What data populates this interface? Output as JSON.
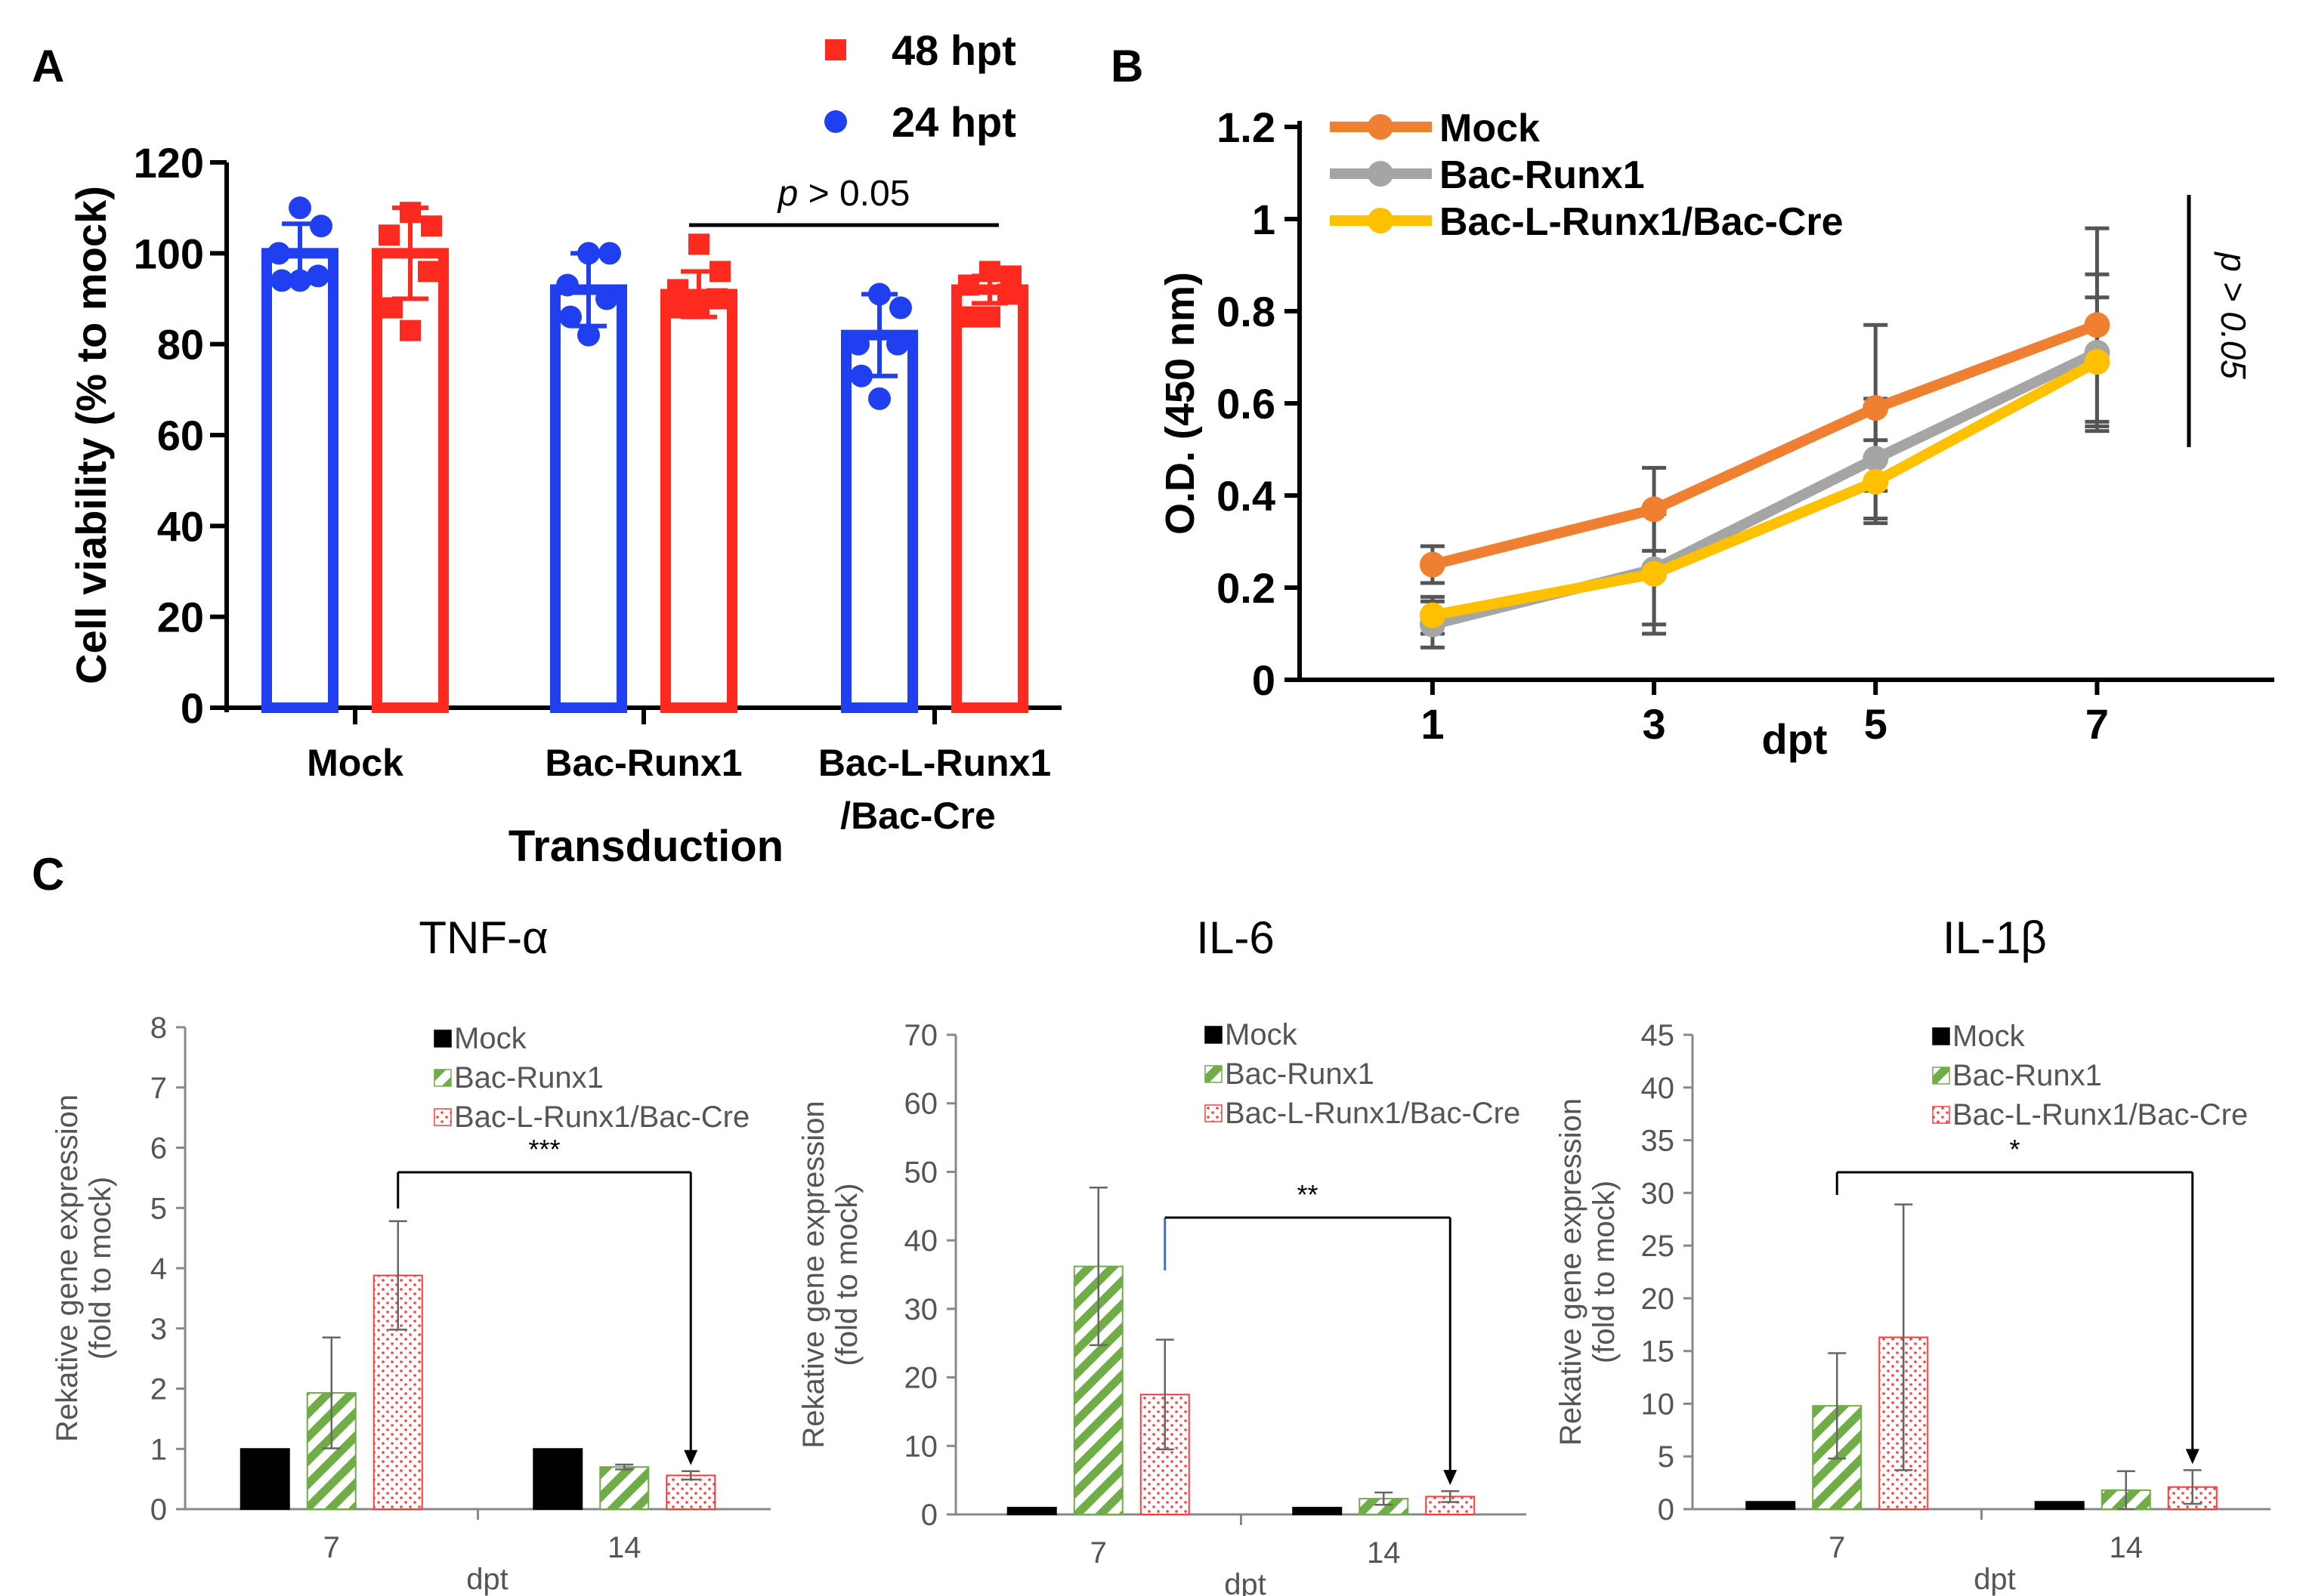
{
  "panels": {
    "A": {
      "label": "A"
    },
    "B": {
      "label": "B"
    },
    "C": {
      "label": "C"
    }
  },
  "chart_data": [
    {
      "id": "A",
      "type": "bar",
      "title": "",
      "xlabel": "Transduction",
      "ylabel": "Cell viability (% to mock)",
      "ylim": [
        0,
        120
      ],
      "yticks": [
        "0",
        "20",
        "40",
        "60",
        "80",
        "100",
        "120"
      ],
      "categories": [
        "Mock",
        "Bac-Runx1",
        "Bac-L-Runx1\n/Bac-Cre"
      ],
      "category_lines": [
        [
          "Mock"
        ],
        [
          "Bac-Runx1"
        ],
        [
          "Bac-L-Runx1",
          "/Bac-Cre"
        ]
      ],
      "legend": {
        "position": "top",
        "entries": [
          "48 hpt",
          "24 hpt"
        ]
      },
      "series": [
        {
          "name": "24 hpt",
          "color": "#1f3ff0",
          "marker": "circle",
          "values": [
            100,
            92,
            82
          ],
          "errors": [
            6.5,
            8,
            9
          ],
          "points": [
            [
              110,
              106,
              100,
              95,
              94,
              94
            ],
            [
              100,
              100,
              93,
              90,
              86,
              82
            ],
            [
              91,
              88,
              80,
              80,
              73,
              68
            ]
          ]
        },
        {
          "name": "48 hpt",
          "color": "#ff2a1f",
          "marker": "square",
          "values": [
            100,
            91,
            92
          ],
          "errors": [
            10,
            5,
            3
          ],
          "points": [
            [
              109,
              106,
              104,
              96,
              88,
              83
            ],
            [
              102,
              96,
              92,
              90,
              88,
              88
            ],
            [
              96,
              95,
              93,
              91,
              86,
              86
            ]
          ]
        }
      ],
      "annotations": [
        {
          "text_italic": "p",
          "text": " > 0.05",
          "from": 1,
          "to": 2
        }
      ]
    },
    {
      "id": "B",
      "type": "line",
      "title": "",
      "xlabel": "dpt",
      "ylabel": "O.D. (450 nm)",
      "x": [
        1,
        3,
        5,
        7
      ],
      "xlim": [
        -0.2,
        8.6
      ],
      "xticks": [
        "1",
        "3",
        "5",
        "7"
      ],
      "ylim": [
        0,
        1.2
      ],
      "yticks": [
        "0",
        "0.2",
        "0.4",
        "0.6",
        "0.8",
        "1",
        "1.2"
      ],
      "legend": {
        "position": "top-left",
        "entries": [
          "Mock",
          "Bac-Runx1",
          "Bac-L-Runx1/Bac-Cre"
        ]
      },
      "series": [
        {
          "name": "Mock",
          "color": "#ef7f31",
          "values": [
            0.25,
            0.37,
            0.59,
            0.77
          ],
          "errors": [
            0.04,
            0.09,
            0.18,
            0.21
          ]
        },
        {
          "name": "Bac-Runx1",
          "color": "#a5a5a5",
          "values": [
            0.12,
            0.24,
            0.48,
            0.71
          ],
          "errors": [
            0.05,
            0.12,
            0.13,
            0.17
          ]
        },
        {
          "name": "Bac-L-Runx1/Bac-Cre",
          "color": "#ffc000",
          "values": [
            0.14,
            0.23,
            0.43,
            0.69
          ],
          "errors": [
            0.04,
            0.13,
            0.09,
            0.14
          ]
        }
      ],
      "annotations": [
        {
          "text": "p > 0.05"
        }
      ]
    },
    {
      "id": "C1",
      "type": "bar",
      "title": "TNF-α",
      "xlabel": "dpt",
      "ylabel_lines": [
        "Rekative gene expression",
        "(fold to mock)"
      ],
      "ylim": [
        0,
        8
      ],
      "yticks": [
        "0",
        "1",
        "2",
        "3",
        "4",
        "5",
        "6",
        "7",
        "8"
      ],
      "categories": [
        "7",
        "14"
      ],
      "legend": {
        "position": "top-right",
        "entries": [
          "Mock",
          "Bac-Runx1",
          "Bac-L-Runx1/Bac-Cre"
        ]
      },
      "series": [
        {
          "name": "Mock",
          "pattern": "solid",
          "values": [
            1.0,
            1.0
          ],
          "errors": [
            0,
            0
          ]
        },
        {
          "name": "Bac-Runx1",
          "pattern": "stripes",
          "values": [
            1.93,
            0.7
          ],
          "errors": [
            0.92,
            0.04
          ]
        },
        {
          "name": "Bac-L-Runx1/Bac-Cre",
          "pattern": "dots",
          "values": [
            3.88,
            0.56
          ],
          "errors": [
            0.9,
            0.07
          ]
        }
      ],
      "annotations": [
        {
          "text": "***"
        }
      ]
    },
    {
      "id": "C2",
      "type": "bar",
      "title": "IL-6",
      "xlabel": "dpt",
      "ylabel_lines": [
        "Rekative gene expression",
        "(fold to mock)"
      ],
      "ylim": [
        0,
        70
      ],
      "yticks": [
        "0",
        "10",
        "20",
        "30",
        "40",
        "50",
        "60",
        "70"
      ],
      "categories": [
        "7",
        "14"
      ],
      "legend": {
        "position": "top-right",
        "entries": [
          "Mock",
          "Bac-Runx1",
          "Bac-L-Runx1/Bac-Cre"
        ]
      },
      "series": [
        {
          "name": "Mock",
          "pattern": "solid",
          "values": [
            1.0,
            1.0
          ],
          "errors": [
            0,
            0
          ]
        },
        {
          "name": "Bac-Runx1",
          "pattern": "stripes",
          "values": [
            36.2,
            2.3
          ],
          "errors": [
            11.5,
            0.9
          ]
        },
        {
          "name": "Bac-L-Runx1/Bac-Cre",
          "pattern": "dots",
          "values": [
            17.5,
            2.6
          ],
          "errors": [
            8.0,
            0.8
          ]
        }
      ],
      "annotations": [
        {
          "text": "**"
        }
      ]
    },
    {
      "id": "C3",
      "type": "bar",
      "title": "IL-1β",
      "xlabel": "dpt",
      "ylabel_lines": [
        "Rekative gene expression",
        "(fold to mock)"
      ],
      "ylim": [
        0,
        45
      ],
      "yticks": [
        "0",
        "5",
        "10",
        "15",
        "20",
        "25",
        "30",
        "35",
        "40",
        "45"
      ],
      "categories": [
        "7",
        "14"
      ],
      "legend": {
        "position": "top-right",
        "entries": [
          "Mock",
          "Bac-Runx1",
          "Bac-L-Runx1/Bac-Cre"
        ]
      },
      "series": [
        {
          "name": "Mock",
          "pattern": "solid",
          "values": [
            0.7,
            0.7
          ],
          "errors": [
            0,
            0
          ]
        },
        {
          "name": "Bac-Runx1",
          "pattern": "stripes",
          "values": [
            9.8,
            1.8
          ],
          "errors": [
            5.0,
            1.8
          ]
        },
        {
          "name": "Bac-L-Runx1/Bac-Cre",
          "pattern": "dots",
          "values": [
            16.3,
            2.1
          ],
          "errors": [
            12.6,
            1.6
          ]
        }
      ],
      "annotations": [
        {
          "text": "*"
        }
      ]
    }
  ]
}
